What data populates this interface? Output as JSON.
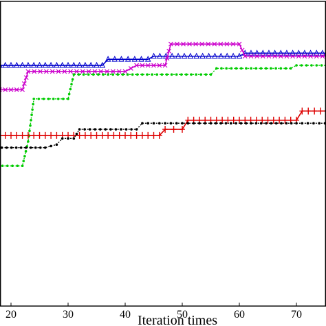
{
  "chart_data": {
    "type": "line",
    "title": "",
    "xlabel": "Iteration times",
    "ylabel": "",
    "xlim": [
      15,
      85
    ],
    "ylim": [
      0,
      100
    ],
    "x_ticks": [
      20,
      30,
      40,
      50,
      60,
      70
    ],
    "grid": false,
    "series": [
      {
        "color": "#0000cc",
        "marker": "triangle",
        "points": [
          [
            15,
            79
          ],
          [
            36,
            79
          ],
          [
            37,
            81
          ],
          [
            44,
            81
          ],
          [
            45,
            82
          ],
          [
            60,
            82
          ],
          [
            61,
            83
          ],
          [
            85,
            83
          ]
        ]
      },
      {
        "color": "#cc00cc",
        "marker": "x",
        "points": [
          [
            15,
            65
          ],
          [
            16,
            65
          ],
          [
            17,
            71
          ],
          [
            22,
            71
          ],
          [
            23,
            77
          ],
          [
            40,
            77
          ],
          [
            42,
            79
          ],
          [
            47,
            79
          ],
          [
            48,
            86
          ],
          [
            60,
            86
          ],
          [
            61,
            82
          ],
          [
            85,
            82
          ]
        ]
      },
      {
        "color": "#00cc00",
        "marker": "dot",
        "points": [
          [
            15,
            46
          ],
          [
            22,
            46
          ],
          [
            23,
            54
          ],
          [
            24,
            68
          ],
          [
            30,
            68
          ],
          [
            31,
            76
          ],
          [
            55,
            76
          ],
          [
            56,
            78
          ],
          [
            69,
            78
          ],
          [
            70,
            79
          ],
          [
            85,
            79
          ]
        ]
      },
      {
        "color": "#dd0000",
        "marker": "plus",
        "points": [
          [
            15,
            56
          ],
          [
            46,
            56
          ],
          [
            47,
            58
          ],
          [
            50,
            58
          ],
          [
            51,
            61
          ],
          [
            70,
            61
          ],
          [
            71,
            64
          ],
          [
            85,
            64
          ]
        ]
      },
      {
        "color": "#000000",
        "marker": "dot",
        "points": [
          [
            15,
            52
          ],
          [
            26,
            52
          ],
          [
            28,
            53
          ],
          [
            29,
            55
          ],
          [
            31,
            55
          ],
          [
            32,
            58
          ],
          [
            42,
            58
          ],
          [
            43,
            60
          ],
          [
            45,
            60
          ],
          [
            50,
            60
          ],
          [
            55,
            60
          ],
          [
            70,
            60
          ],
          [
            75,
            60
          ],
          [
            85,
            60
          ]
        ]
      }
    ]
  },
  "x_axis_label": "Iteration times"
}
